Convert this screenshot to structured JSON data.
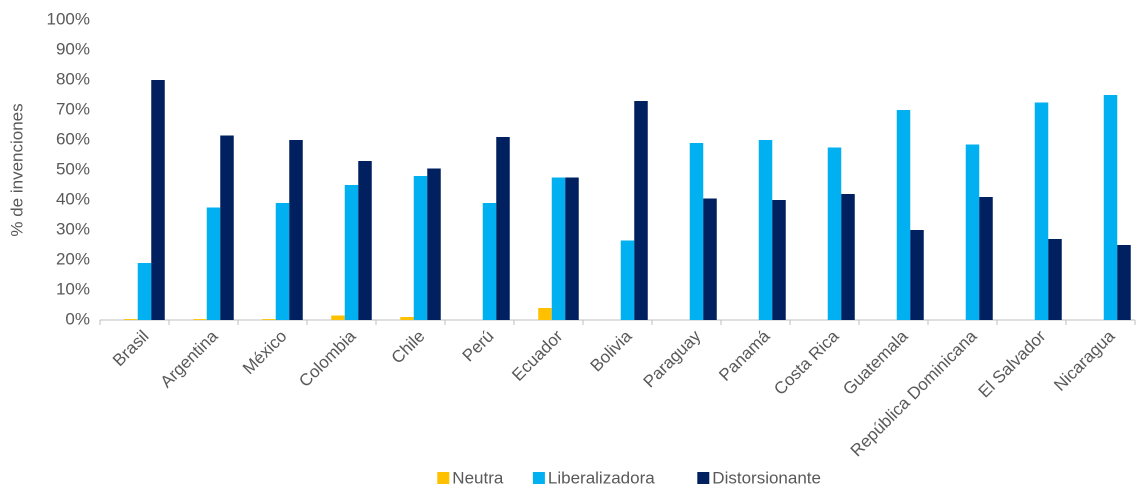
{
  "chart_data": {
    "type": "bar",
    "y_label": "% de invenciones",
    "categories": [
      "Brasil",
      "Argentina",
      "México",
      "Colombia",
      "Chile",
      "Perú",
      "Ecuador",
      "Bolivia",
      "Paraguay",
      "Panamá",
      "Costa Rica",
      "Guatemala",
      "República Dominicana",
      "El Salvador",
      "Nicaragua"
    ],
    "series": [
      {
        "name": "Neutra",
        "color": "#ffc000",
        "values": [
          0.3,
          0.3,
          0.3,
          1.5,
          1,
          0,
          4,
          0,
          0,
          0,
          0,
          0,
          0,
          0,
          0
        ]
      },
      {
        "name": "Liberalizadora",
        "color": "#00b0f0",
        "values": [
          19,
          37.5,
          39,
          45,
          48,
          39,
          47.5,
          26.5,
          59,
          60,
          57.5,
          70,
          58.5,
          72.5,
          75
        ]
      },
      {
        "name": "Distorsionante",
        "color": "#002060",
        "values": [
          80,
          61.5,
          60,
          53,
          50.5,
          61,
          47.5,
          73,
          40.5,
          40,
          42,
          30,
          41,
          27,
          25
        ]
      }
    ],
    "ylim": [
      0,
      100
    ],
    "yticks": [
      {
        "value": 0,
        "label": "0%"
      },
      {
        "value": 10,
        "label": "10%"
      },
      {
        "value": 20,
        "label": "20%"
      },
      {
        "value": 30,
        "label": "30%"
      },
      {
        "value": 40,
        "label": "40%"
      },
      {
        "value": 50,
        "label": "50%"
      },
      {
        "value": 60,
        "label": "60%"
      },
      {
        "value": 70,
        "label": "70%"
      },
      {
        "value": 80,
        "label": "80%"
      },
      {
        "value": 90,
        "label": "90%"
      },
      {
        "value": 100,
        "label": "100%"
      }
    ],
    "legend": "bottom"
  }
}
